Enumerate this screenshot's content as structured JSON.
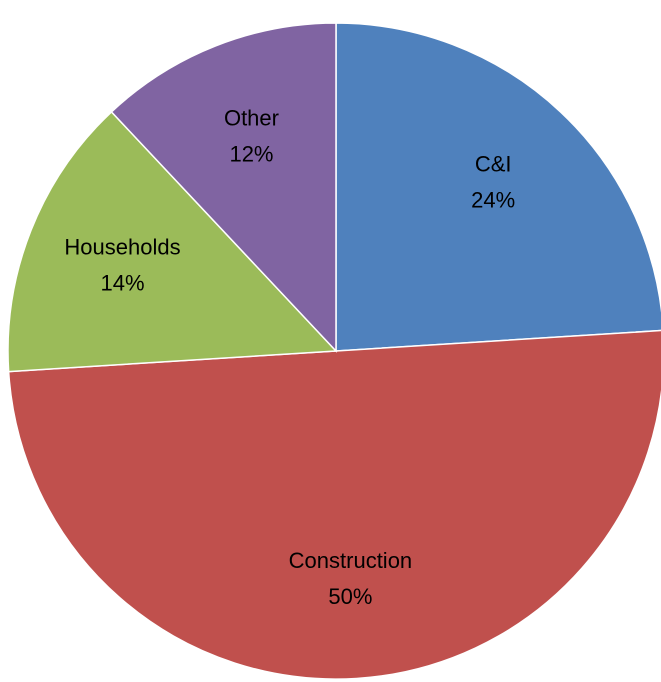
{
  "chart_data": {
    "type": "pie",
    "categories": [
      "C&I",
      "Construction",
      "Households",
      "Other"
    ],
    "values": [
      24,
      50,
      14,
      12
    ],
    "value_labels": [
      "24%",
      "50%",
      "14%",
      "12%"
    ],
    "colors": [
      "#4f81bd",
      "#c0504d",
      "#9bbb59",
      "#8064a2"
    ]
  }
}
